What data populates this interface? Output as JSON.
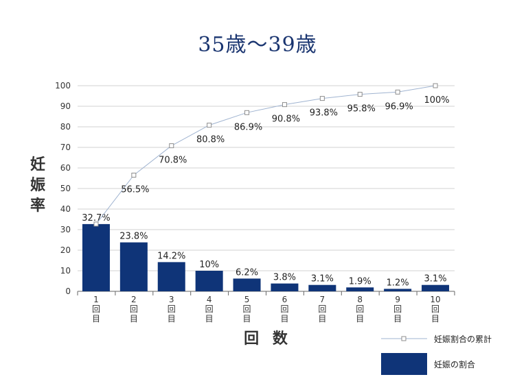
{
  "chart_data": {
    "type": "bar",
    "title": "35歳～39歳",
    "ylabel": [
      "妊",
      "娠",
      "率"
    ],
    "xlabel": "回 数",
    "ylim": [
      0,
      100
    ],
    "y_ticks": [
      "0",
      "10",
      "20",
      "30",
      "40",
      "50",
      "60",
      "70",
      "80",
      "90",
      "100"
    ],
    "grid": true,
    "categories": [
      {
        "num": "1",
        "c1": "回",
        "c2": "目"
      },
      {
        "num": "2",
        "c1": "回",
        "c2": "目"
      },
      {
        "num": "3",
        "c1": "回",
        "c2": "目"
      },
      {
        "num": "4",
        "c1": "回",
        "c2": "目"
      },
      {
        "num": "5",
        "c1": "回",
        "c2": "目"
      },
      {
        "num": "6",
        "c1": "回",
        "c2": "目"
      },
      {
        "num": "7",
        "c1": "回",
        "c2": "目"
      },
      {
        "num": "8",
        "c1": "回",
        "c2": "目"
      },
      {
        "num": "9",
        "c1": "回",
        "c2": "目"
      },
      {
        "num": "10",
        "c1": "回",
        "c2": "目"
      }
    ],
    "series": [
      {
        "name": "妊娠の割合",
        "kind": "bar",
        "color": "#0f3478",
        "values": [
          32.7,
          23.8,
          14.2,
          10,
          6.2,
          3.8,
          3.1,
          1.9,
          1.2,
          3.1
        ],
        "labels": [
          "32.7%",
          "23.8%",
          "14.2%",
          "10%",
          "6.2%",
          "3.8%",
          "3.1%",
          "1.9%",
          "1.2%",
          "3.1%"
        ]
      },
      {
        "name": "妊娠割合の累計",
        "kind": "line",
        "color": "#9fb3d0",
        "marker_color": "#8c8c8c",
        "values": [
          32.7,
          56.5,
          70.8,
          80.8,
          86.9,
          90.8,
          93.8,
          95.8,
          96.9,
          100
        ],
        "labels": [
          "32.7%",
          "56.5%",
          "70.8%",
          "80.8%",
          "86.9%",
          "90.8%",
          "93.8%",
          "95.8%",
          "96.9%",
          "100%"
        ]
      }
    ],
    "legend": {
      "placement": "bottom-right",
      "line_label": "妊娠割合の累計",
      "bar_label": "妊娠の割合"
    }
  }
}
